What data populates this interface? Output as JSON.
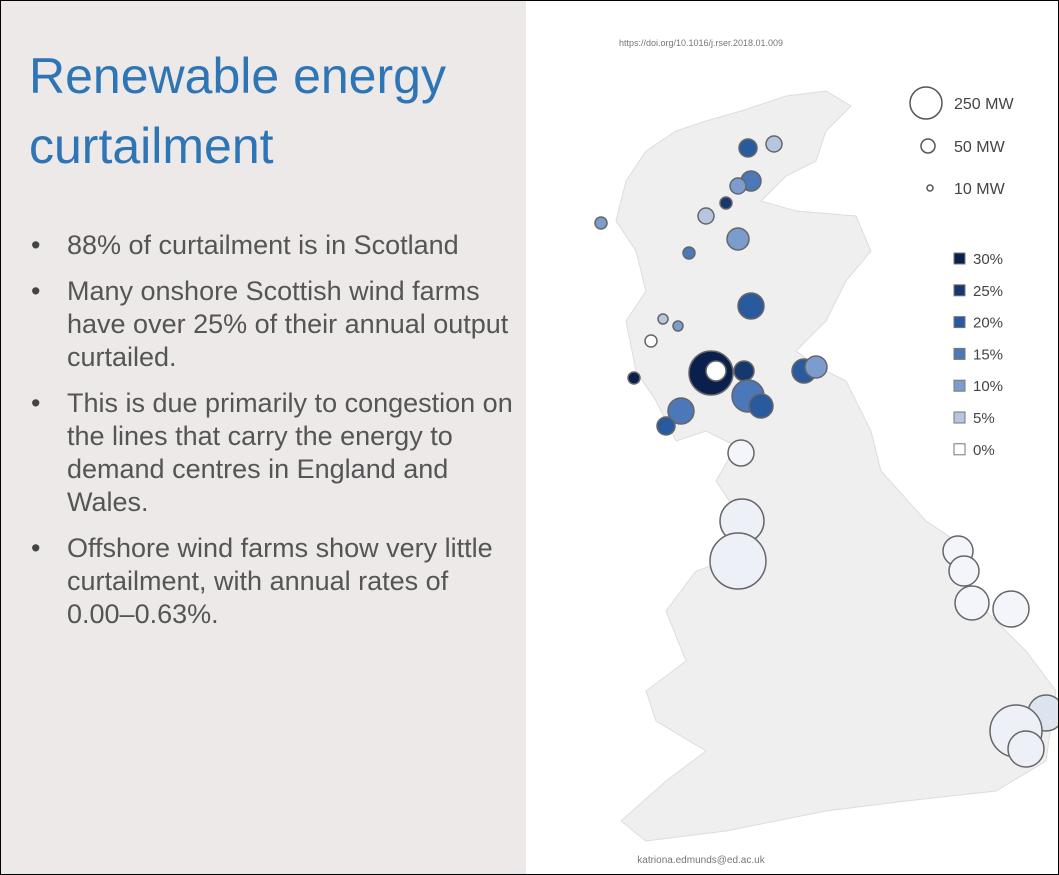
{
  "slide": {
    "title": "Renewable energy curtailment",
    "bullets": [
      "88% of curtailment is in Scotland",
      "Many onshore Scottish wind farms have over 25% of their annual output curtailed.",
      "This is due primarily to congestion on the lines that carry the energy to demand centres in England and Wales.",
      "Offshore wind farms show very little curtailment, with annual rates of 0.00–0.63%."
    ],
    "source": "https://doi.org/10.1016/j.rser.2018.01.009",
    "legend": {
      "sizes": [
        "250 MW",
        "50 MW",
        "10 MW"
      ],
      "rates": [
        "30%",
        "25%",
        "20%",
        "15%",
        "10%",
        "5%",
        "0%"
      ]
    },
    "credit": "katriona.edmunds@ed.ac.uk"
  }
}
